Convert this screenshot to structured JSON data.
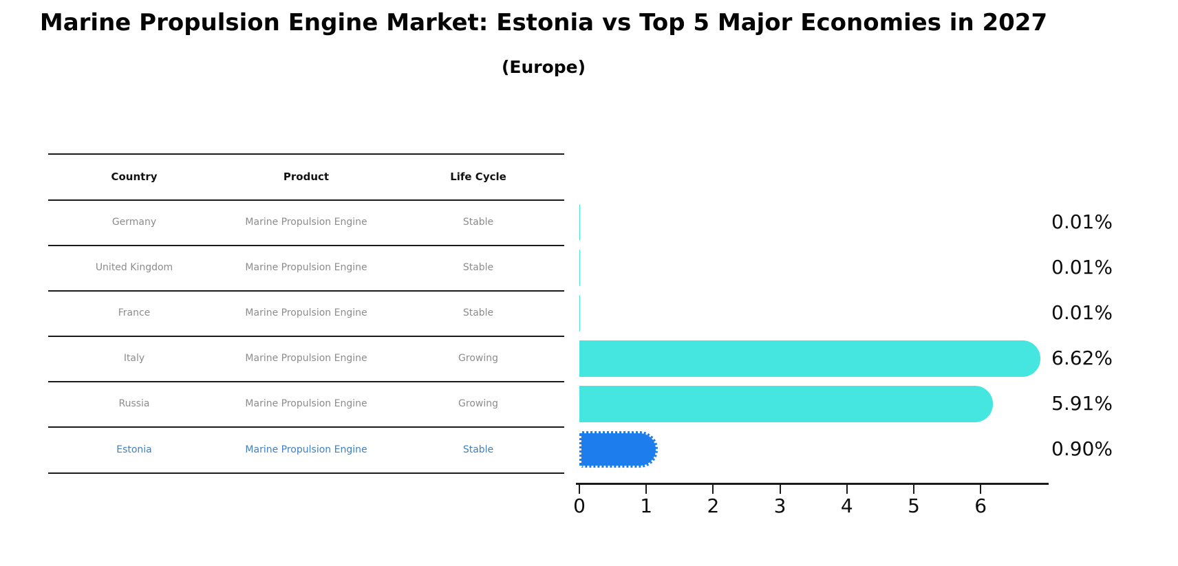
{
  "title": "Marine Propulsion Engine Market: Estonia vs Top 5 Major Economies in 2027",
  "subtitle": "(Europe)",
  "table": {
    "headers": [
      "Country",
      "Product",
      "Life Cycle"
    ],
    "rows": [
      {
        "country": "Germany",
        "product": "Marine Propulsion Engine",
        "life_cycle": "Stable",
        "highlighted": false
      },
      {
        "country": "United Kingdom",
        "product": "Marine Propulsion Engine",
        "life_cycle": "Stable",
        "highlighted": false
      },
      {
        "country": "France",
        "product": "Marine Propulsion Engine",
        "life_cycle": "Stable",
        "highlighted": false
      },
      {
        "country": "Italy",
        "product": "Marine Propulsion Engine",
        "life_cycle": "Growing",
        "highlighted": false
      },
      {
        "country": "Russia",
        "product": "Marine Propulsion Engine",
        "life_cycle": "Growing",
        "highlighted": false
      },
      {
        "country": "Estonia",
        "product": "Marine Propulsion Engine",
        "life_cycle": "Stable",
        "highlighted": true
      }
    ]
  },
  "chart_data": {
    "type": "bar",
    "orientation": "horizontal",
    "title": "Marine Propulsion Engine Market: Estonia vs Top 5 Major Economies in 2027 (Europe)",
    "categories": [
      "Germany",
      "United Kingdom",
      "France",
      "Italy",
      "Russia",
      "Estonia"
    ],
    "values": [
      0.01,
      0.01,
      0.01,
      6.62,
      5.91,
      0.9
    ],
    "labels": [
      "0.01%",
      "0.01%",
      "0.01%",
      "6.62%",
      "5.91%",
      "0.90%"
    ],
    "x_ticks": [
      0,
      1,
      2,
      3,
      4,
      5,
      6
    ],
    "x_tick_labels": [
      "0",
      "1",
      "2",
      "3",
      "4",
      "5",
      "6"
    ],
    "xlim": [
      0,
      7
    ],
    "xlabel": "",
    "ylabel": "",
    "grid": false,
    "legend": "none",
    "bar_colors": [
      "#46e6e0",
      "#46e6e0",
      "#46e6e0",
      "#46e6e0",
      "#46e6e0",
      "#1d7ded"
    ],
    "highlight_index": 5,
    "bar_cap_style": "rounded-right, highlighted bar has dotted white edge"
  },
  "colors": {
    "bar_default": "#46e6e0",
    "bar_highlight": "#1d7ded",
    "highlight_text": "#3f7fc1",
    "table_text": "#8c8c8c",
    "axis": "#1a1a1a",
    "background": "#ffffff"
  }
}
